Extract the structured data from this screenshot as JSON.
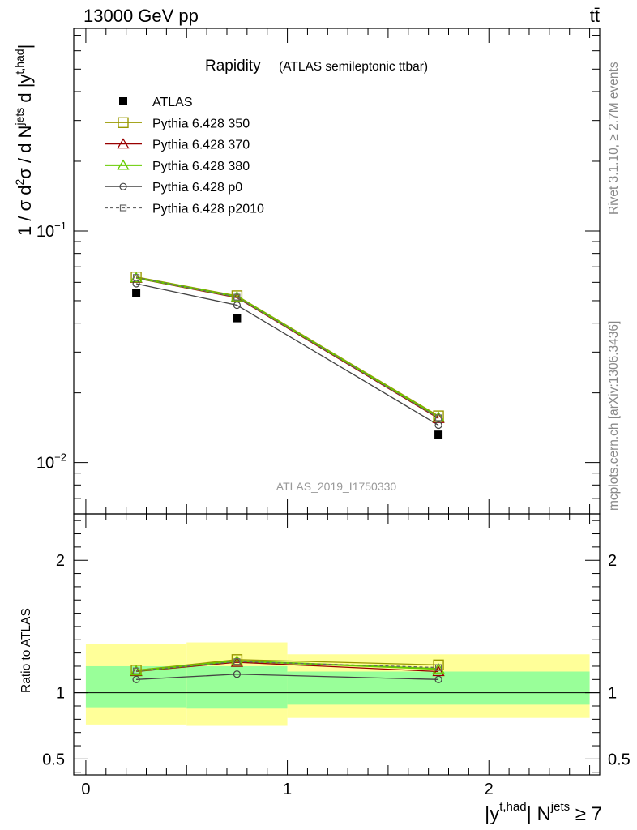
{
  "header": {
    "left": "13000 GeV pp",
    "right": "tt̄"
  },
  "side_labels": {
    "rivet": "Rivet 3.1.10, ≥ 2.7M events",
    "mcplots": "mcplots.cern.ch [arXiv:1306.3436]"
  },
  "analysis_id": "ATLAS_2019_I1750330",
  "chart_data": [
    {
      "type": "line",
      "title": "Rapidity",
      "subtitle": "(ATLAS semileptonic ttbar)",
      "ylabel": "1 / σ d²σ / d N^jets d |y^t,had|",
      "ylabel_parts": {
        "prefix": "1 / σ d",
        "sup1": "2",
        "mid": "σ / d N",
        "sup2": "jets",
        "tail": " d |y",
        "sup3": "t,had",
        "end": "|"
      },
      "yscale": "log",
      "ylim": [
        0.006,
        0.75
      ],
      "y_tick_labels": [
        "10⁻¹",
        "10⁻²"
      ],
      "y_tick_parts": [
        {
          "base": "10",
          "exp": "−1"
        },
        {
          "base": "10",
          "exp": "−2"
        }
      ],
      "xlim": [
        -0.06,
        2.55
      ],
      "x_bin_edges": [
        0,
        0.5,
        1,
        2.5
      ],
      "legend_position": "top-left",
      "series": [
        {
          "name": "ATLAS",
          "marker": "filled-square",
          "color": "#000000",
          "x": [
            0.25,
            0.75,
            1.75
          ],
          "values": [
            0.054,
            0.042,
            0.0132
          ]
        },
        {
          "name": "Pythia 6.428 350",
          "marker": "open-square",
          "color": "#999900",
          "dash": "solid",
          "x": [
            0.25,
            0.75,
            1.75
          ],
          "values": [
            0.0633,
            0.0525,
            0.0159
          ]
        },
        {
          "name": "Pythia 6.428 370",
          "marker": "open-triangle",
          "color": "#990000",
          "dash": "solid",
          "x": [
            0.25,
            0.75,
            1.75
          ],
          "values": [
            0.0625,
            0.0515,
            0.0155
          ]
        },
        {
          "name": "Pythia 6.428 380",
          "marker": "open-triangle",
          "color": "#66cc00",
          "dash": "solid",
          "x": [
            0.25,
            0.75,
            1.75
          ],
          "values": [
            0.0628,
            0.052,
            0.0157
          ]
        },
        {
          "name": "Pythia 6.428 p0",
          "marker": "open-circle",
          "color": "#444444",
          "dash": "solid",
          "x": [
            0.25,
            0.75,
            1.75
          ],
          "values": [
            0.0592,
            0.0478,
            0.0145
          ]
        },
        {
          "name": "Pythia 6.428 p2010",
          "marker": "open-square-small",
          "color": "#666666",
          "dash": "dashed",
          "x": [
            0.25,
            0.75,
            1.75
          ],
          "values": [
            0.063,
            0.0518,
            0.0156
          ]
        }
      ]
    },
    {
      "type": "line",
      "ylabel": "Ratio to ATLAS",
      "ylim": [
        0.38,
        2.35
      ],
      "y_ticks": [
        0.5,
        1,
        2
      ],
      "y_tick_labels": [
        "0.5",
        "1",
        "2"
      ],
      "x_ticks": [
        0,
        1,
        2
      ],
      "x_tick_labels": [
        "0",
        "1",
        "2"
      ],
      "xlabel": "|y^t,had| N^jets ≥ 7",
      "xlabel_parts": {
        "prefix": "|y",
        "sup1": "t,had",
        "mid": "| N",
        "sup2": "jets",
        "end": " ≥ 7"
      },
      "xlim": [
        -0.06,
        2.55
      ],
      "bands": {
        "x_edges": [
          0,
          0.5,
          1,
          2.5
        ],
        "outer_lo": [
          0.76,
          0.75,
          0.81
        ],
        "outer_hi": [
          1.37,
          1.38,
          1.29
        ],
        "inner_lo": [
          0.89,
          0.88,
          0.91
        ],
        "inner_hi": [
          1.2,
          1.2,
          1.16
        ],
        "outer_color": "#ffff99",
        "inner_color": "#99ff99"
      },
      "series": [
        {
          "name": "Pythia 6.428 350",
          "marker": "open-square",
          "color": "#999900",
          "dash": "solid",
          "x": [
            0.25,
            0.75,
            1.75
          ],
          "values": [
            1.17,
            1.25,
            1.21
          ]
        },
        {
          "name": "Pythia 6.428 370",
          "marker": "open-triangle",
          "color": "#990000",
          "dash": "solid",
          "x": [
            0.25,
            0.75,
            1.75
          ],
          "values": [
            1.16,
            1.23,
            1.16
          ]
        },
        {
          "name": "Pythia 6.428 380",
          "marker": "open-triangle",
          "color": "#66cc00",
          "dash": "solid",
          "x": [
            0.25,
            0.75,
            1.75
          ],
          "values": [
            1.165,
            1.24,
            1.18
          ]
        },
        {
          "name": "Pythia 6.428 p0",
          "marker": "open-circle",
          "color": "#444444",
          "dash": "solid",
          "x": [
            0.25,
            0.75,
            1.75
          ],
          "values": [
            1.1,
            1.14,
            1.1
          ]
        },
        {
          "name": "Pythia 6.428 p2010",
          "marker": "open-square-small",
          "color": "#666666",
          "dash": "dashed",
          "x": [
            0.25,
            0.75,
            1.75
          ],
          "values": [
            1.165,
            1.235,
            1.19
          ]
        }
      ]
    }
  ]
}
